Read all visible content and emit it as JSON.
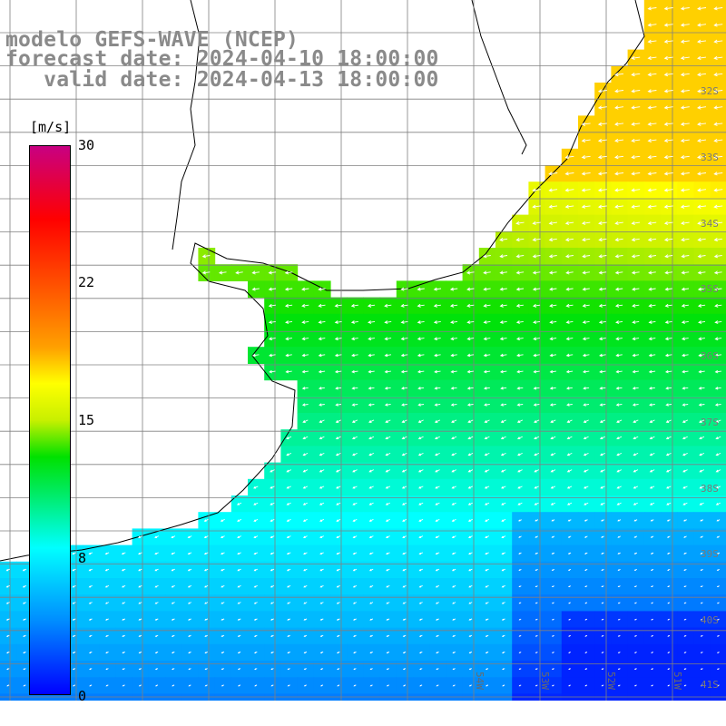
{
  "title": {
    "line1": "modelo GEFS-WAVE (NCEP)",
    "line2": "forecast date: 2024-04-10 18:00:00",
    "line3": "   valid date: 2024-04-13 18:00:00"
  },
  "colorbar": {
    "unit": "[m/s]",
    "ticks": [
      "30",
      "22",
      "15",
      "8",
      "0"
    ],
    "tick_values": [
      30,
      22,
      15,
      8,
      0
    ],
    "min": 0,
    "max": 30
  },
  "grid": {
    "lat_labels": [
      "32S",
      "33S",
      "34S",
      "35S",
      "36S",
      "37S",
      "38S",
      "39S",
      "40S",
      "41S"
    ],
    "lon_labels": [
      "54W",
      "53W",
      "52W",
      "51W"
    ]
  },
  "colors": {
    "land": "#ffffff",
    "coast": "#000000",
    "gridline": "#808080",
    "arrow": "#ffffff",
    "title": "#8a8a8a"
  }
}
